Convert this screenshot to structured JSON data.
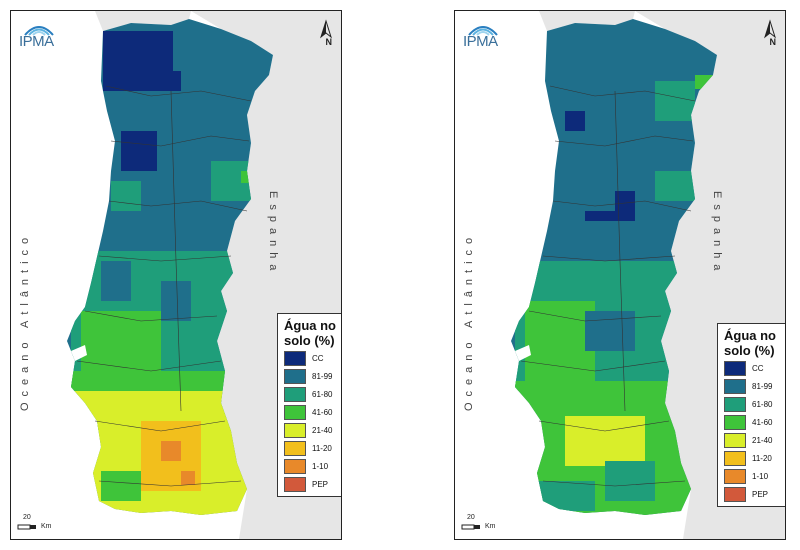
{
  "maps": [
    {
      "id": "left",
      "logo_text": "IPMA",
      "north_label": "N",
      "ocean_label": "Oceano Atlântico",
      "spain_label": "Espanha",
      "legend_title_line1": "Água no",
      "legend_title_line2": "solo (%)",
      "scale_value": "20",
      "scale_unit": "Km"
    },
    {
      "id": "right",
      "logo_text": "IPMA",
      "north_label": "N",
      "ocean_label": "Oceano Atlântico",
      "spain_label": "Espanha",
      "legend_title_line1": "Água no",
      "legend_title_line2": "solo (%)",
      "scale_value": "20",
      "scale_unit": "Km"
    }
  ],
  "legend": [
    {
      "label": "CC",
      "color": "#0d2a7a"
    },
    {
      "label": "81-99",
      "color": "#1f6f8b"
    },
    {
      "label": "61-80",
      "color": "#1f9e7a"
    },
    {
      "label": "41-60",
      "color": "#3fc43a"
    },
    {
      "label": "21-40",
      "color": "#d9ee2a"
    },
    {
      "label": "11-20",
      "color": "#f2bf1c"
    },
    {
      "label": "1-10",
      "color": "#e8892a"
    },
    {
      "label": "PEP",
      "color": "#d2593b"
    }
  ]
}
